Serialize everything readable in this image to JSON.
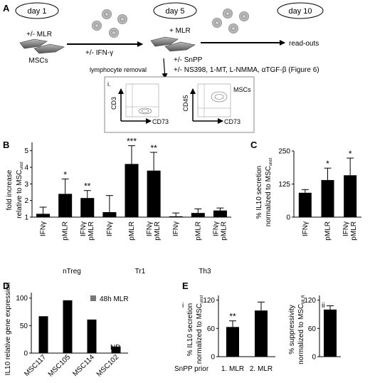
{
  "panelA": {
    "letter": "A",
    "day1": "day 1",
    "day5": "day 5",
    "day10": "day 10",
    "mlr_pm": "+/- MLR",
    "ifn_pm": "+/- IFN-γ",
    "mscs": "MSCs",
    "mlr_plus": "+ MLR",
    "readouts": "read-outs",
    "lymph_removal": "lymphocyte removal",
    "snpp": "+/- SnPP",
    "inhibitors": "+/- NS398, 1-MT, L-NMMA, αTGF-β (Figure 6)",
    "inset_i": "i.",
    "cd3": "CD3",
    "cd73a": "CD73",
    "cd45": "CD45",
    "mscs_inset": "MSCs",
    "cd73b": "CD73"
  },
  "panelB": {
    "letter": "B",
    "ylabel1": "fold increase",
    "ylabel2": "relative to MSC",
    "ylabel_sub": "unst",
    "group_labels": [
      "nTreg",
      "Tr1",
      "Th3"
    ],
    "chart_data": {
      "type": "bar",
      "categories": [
        "IFNγ",
        "pMLR",
        "IFNγ pMLR",
        "IFNγ",
        "pMLR",
        "IFNγ pMLR",
        "IFNγ",
        "pMLR",
        "IFNγ pMLR"
      ],
      "groups": [
        "nTreg",
        "nTreg",
        "nTreg",
        "Tr1",
        "Tr1",
        "Tr1",
        "Th3",
        "Th3",
        "Th3"
      ],
      "values": [
        1.2,
        2.4,
        2.15,
        1.3,
        4.2,
        3.8,
        1.05,
        1.25,
        1.4
      ],
      "errors": [
        0.4,
        0.9,
        0.45,
        1.0,
        1.1,
        1.1,
        0.2,
        0.25,
        0.15
      ],
      "significance": [
        "",
        "*",
        "**",
        "",
        "***",
        "**",
        "",
        "",
        ""
      ],
      "yticks": [
        1,
        2,
        3,
        4,
        5
      ],
      "ylim": [
        1,
        5.5
      ]
    }
  },
  "panelC": {
    "letter": "C",
    "ylabel1": "% IL10 secretion",
    "ylabel2": "normalized to MSC",
    "ylabel_sub": "unst",
    "chart_data": {
      "type": "bar",
      "categories": [
        "IFNγ",
        "pMLR",
        "IFNγ pMLR"
      ],
      "values": [
        92,
        140,
        158
      ],
      "errors": [
        12,
        45,
        65
      ],
      "significance": [
        "",
        "*",
        "*"
      ],
      "yticks": [
        0,
        125,
        250
      ],
      "ylim": [
        0,
        250
      ]
    }
  },
  "panelD": {
    "letter": "D",
    "ylabel": "IL10 relative gene expression",
    "legend": "48h MLR",
    "nd": "ND",
    "chart_data": {
      "type": "bar",
      "categories": [
        "MSC117",
        "MSC105",
        "MSC114",
        "MSC102"
      ],
      "values": [
        67,
        96,
        61,
        12
      ],
      "yticks": [
        0,
        50,
        100
      ],
      "ylim": [
        0,
        110
      ]
    }
  },
  "panelE": {
    "letter": "E",
    "sub_i": "i",
    "sub_ii": "ii",
    "ylabel_i1": "% IL10 secretion",
    "ylabel_i2": "normalized to MSC",
    "ylabel_i_sub": "unst",
    "ylabel_ii1": "% suppressivity",
    "ylabel_ii2": "normalized to MSC",
    "ylabel_ii_sub": "MLR",
    "row_label": "SnPP prior",
    "chart_data": [
      {
        "type": "bar",
        "categories": [
          "1. MLR",
          "2. MLR"
        ],
        "values": [
          63,
          98
        ],
        "errors": [
          13,
          18
        ],
        "significance": [
          "**",
          ""
        ],
        "yticks": [
          0,
          60,
          120
        ],
        "ylim": [
          0,
          130
        ]
      },
      {
        "type": "bar",
        "categories": [
          ""
        ],
        "values": [
          100
        ],
        "errors": [
          8
        ],
        "yticks": [
          0,
          60,
          120
        ],
        "ylim": [
          0,
          130
        ]
      }
    ]
  }
}
